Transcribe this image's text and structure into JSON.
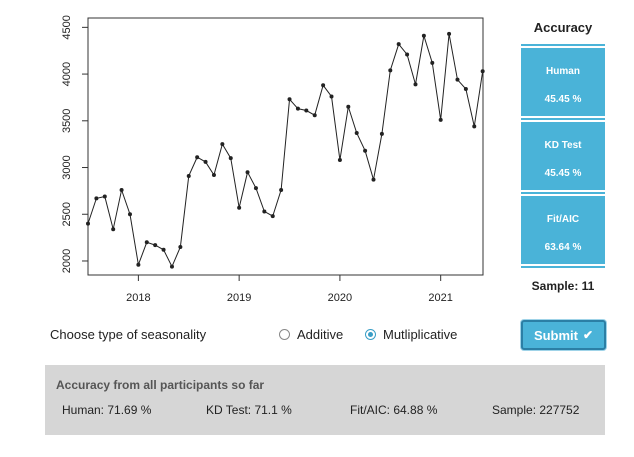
{
  "chart_data": {
    "type": "line",
    "title": "",
    "xlabel": "",
    "ylabel": "",
    "xlim": [
      2017.5,
      2021.42
    ],
    "ylim": [
      1850,
      4600
    ],
    "xticks": [
      "2018",
      "2019",
      "2020",
      "2021"
    ],
    "xtick_values": [
      2018,
      2019,
      2020,
      2021
    ],
    "yticks": [
      "2000",
      "2500",
      "3000",
      "3500",
      "4000",
      "4500"
    ],
    "ytick_values": [
      2000,
      2500,
      3000,
      3500,
      4000,
      4500
    ],
    "grid": false,
    "start": [
      2017,
      7
    ],
    "frequency": "monthly",
    "values": [
      2400,
      2670,
      2690,
      2340,
      2760,
      2500,
      1960,
      2200,
      2170,
      2120,
      1940,
      2150,
      2910,
      3110,
      3060,
      2920,
      3250,
      3100,
      2570,
      2950,
      2780,
      2530,
      2480,
      2760,
      3730,
      3630,
      3610,
      3560,
      3880,
      3760,
      3080,
      3650,
      3370,
      3180,
      2870,
      3360,
      4040,
      4320,
      4210,
      3890,
      4410,
      4120,
      3510,
      4430,
      3940,
      3840,
      3440,
      4030
    ]
  },
  "accuracy_panel": {
    "title": "Accuracy",
    "human_label": "Human",
    "human_value": "45.45 %",
    "kd_label": "KD Test",
    "kd_value": "45.45 %",
    "fit_label": "Fit/AIC",
    "fit_value": "63.64 %",
    "sample": "Sample: 11"
  },
  "controls": {
    "season_label": "Choose type of seasonality",
    "options": [
      "Additive",
      "Mutliplicative"
    ],
    "selected": "Mutliplicative",
    "submit_label": "Submit"
  },
  "summary": {
    "title": "Accuracy from all participants so far",
    "human": "Human: 71.69 %",
    "kd": "KD Test: 71.1 %",
    "fit": "Fit/AIC: 64.88 %",
    "sample": "Sample: 227752"
  },
  "colors": {
    "accent": "#4ab3d8",
    "button_border": "#2b7fa5",
    "summary_bg": "#d6d6d6"
  }
}
